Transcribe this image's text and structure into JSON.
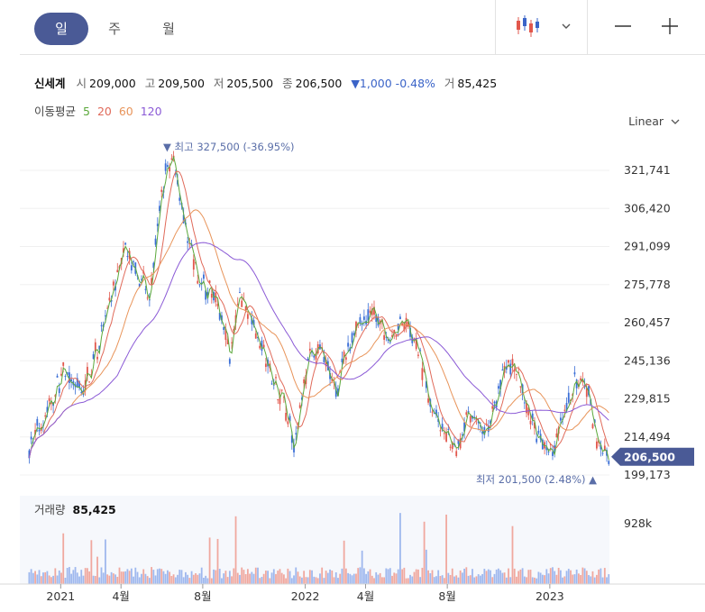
{
  "tabs": [
    "일",
    "주",
    "월"
  ],
  "toolbar": {
    "chart_icon": "candlestick-icon",
    "dropdown_icon": "chevron-down-icon",
    "zoom_out": "—",
    "zoom_in": "+"
  },
  "info": {
    "name": "신세계",
    "open_label": "시",
    "open": "209,000",
    "high_label": "고",
    "high": "209,500",
    "low_label": "저",
    "low": "205,500",
    "close_label": "종",
    "close": "206,500",
    "change": "▼1,000 -0.48%",
    "volume_label": "거",
    "volume": "85,425"
  },
  "ma": {
    "label": "이동평균",
    "periods": [
      "5",
      "20",
      "60",
      "120"
    ],
    "colors": [
      "#5aa83a",
      "#e06a5a",
      "#e8945a",
      "#8b5ad6"
    ]
  },
  "scale_label": "Linear",
  "volume_panel": {
    "label": "거래량",
    "value": "85,425",
    "axis_label": "928k"
  },
  "chart_data": {
    "type": "candlestick",
    "y_ticks": [
      "321,741",
      "306,420",
      "291,099",
      "275,778",
      "260,457",
      "245,136",
      "229,815",
      "214,494",
      "199,173"
    ],
    "y_tick_values": [
      321741,
      306420,
      291099,
      275778,
      260457,
      245136,
      229815,
      214494,
      199173
    ],
    "x_ticks": [
      "2021",
      "4월",
      "8월",
      "2022",
      "4월",
      "8월",
      "2023"
    ],
    "x_tick_dates": [
      "2021-01",
      "2021-04",
      "2021-08",
      "2022-01",
      "2022-04",
      "2022-08",
      "2023-01"
    ],
    "x_start": "2020-11",
    "x_end": "2023-03",
    "last_price": "206,500",
    "last_price_value": 206500,
    "high_annotation": "▼ 최고 327,500 (-36.95%)",
    "low_annotation": "최저 201,500 (2.48%) ▲",
    "price_path": [
      [
        "2020-11-15",
        210000
      ],
      [
        "2020-12-10",
        225000
      ],
      [
        "2021-01-05",
        240000
      ],
      [
        "2021-02-01",
        232000
      ],
      [
        "2021-02-25",
        250000
      ],
      [
        "2021-03-20",
        272000
      ],
      [
        "2021-04-05",
        292000
      ],
      [
        "2021-04-25",
        278000
      ],
      [
        "2021-05-15",
        274000
      ],
      [
        "2021-06-05",
        320000
      ],
      [
        "2021-06-20",
        327500
      ],
      [
        "2021-07-05",
        298000
      ],
      [
        "2021-07-25",
        278000
      ],
      [
        "2021-08-20",
        270000
      ],
      [
        "2021-09-10",
        248000
      ],
      [
        "2021-09-25",
        270000
      ],
      [
        "2021-10-15",
        262000
      ],
      [
        "2021-11-10",
        240000
      ],
      [
        "2021-11-30",
        230000
      ],
      [
        "2021-12-15",
        212000
      ],
      [
        "2022-01-05",
        245000
      ],
      [
        "2022-01-25",
        250000
      ],
      [
        "2022-02-15",
        232000
      ],
      [
        "2022-03-05",
        250000
      ],
      [
        "2022-03-25",
        262000
      ],
      [
        "2022-04-15",
        264000
      ],
      [
        "2022-05-05",
        252000
      ],
      [
        "2022-05-25",
        262000
      ],
      [
        "2022-06-15",
        252000
      ],
      [
        "2022-07-05",
        232000
      ],
      [
        "2022-07-25",
        218000
      ],
      [
        "2022-08-15",
        210000
      ],
      [
        "2022-09-05",
        224000
      ],
      [
        "2022-09-25",
        214000
      ],
      [
        "2022-10-15",
        232000
      ],
      [
        "2022-11-05",
        246000
      ],
      [
        "2022-11-25",
        228000
      ],
      [
        "2022-12-15",
        214000
      ],
      [
        "2023-01-05",
        208000
      ],
      [
        "2023-01-25",
        226000
      ],
      [
        "2023-02-10",
        238000
      ],
      [
        "2023-02-28",
        232000
      ],
      [
        "2023-03-15",
        210000
      ],
      [
        "2023-03-30",
        206500
      ]
    ],
    "volume_max": 928000
  }
}
